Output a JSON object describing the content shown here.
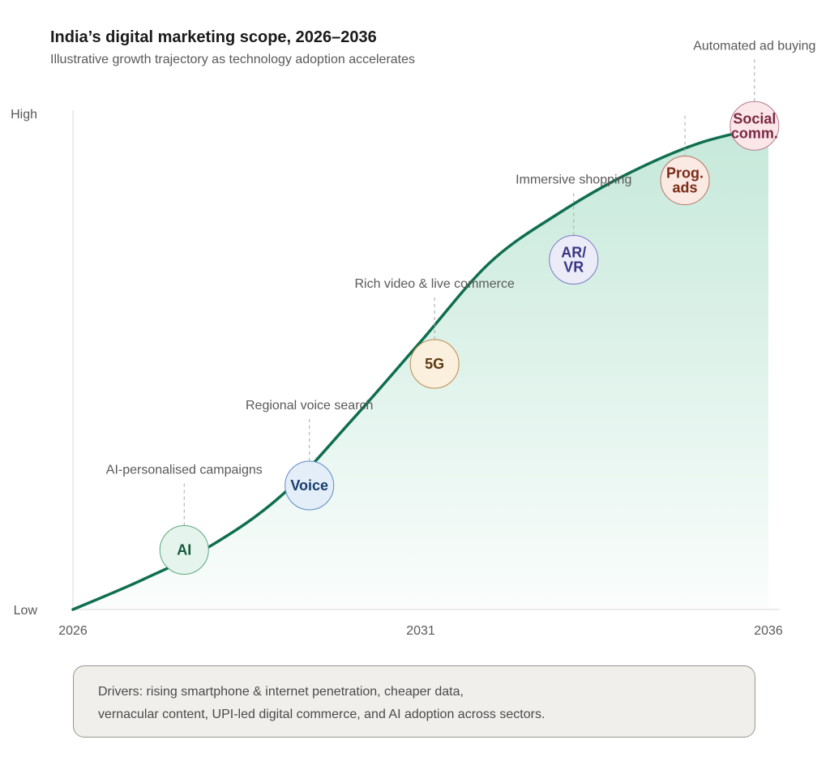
{
  "title": "India’s digital marketing scope, 2026–2036",
  "subtitle": "Illustrative growth trajectory as technology adoption accelerates",
  "chart_data": {
    "type": "area",
    "title": "India’s digital marketing scope, 2026–2036",
    "subtitle": "Illustrative growth trajectory as technology adoption accelerates",
    "xlabel": "",
    "ylabel": "",
    "x_ticks": [
      "2026",
      "2031",
      "2036"
    ],
    "y_ticks": [
      "Low",
      "High"
    ],
    "xlim": [
      2026,
      2036
    ],
    "ylim": [
      0,
      1
    ],
    "grid": false,
    "legend": "none",
    "colors": {
      "line": "#0f6e50",
      "fill": "#9fd9c1",
      "axis": "#d9d9d9"
    },
    "curve": {
      "x": [
        2026.0,
        2027.0,
        2028.0,
        2029.0,
        2030.0,
        2031.0,
        2032.0,
        2033.0,
        2034.0,
        2035.0,
        2036.0
      ],
      "y": [
        0.0,
        0.06,
        0.13,
        0.23,
        0.38,
        0.54,
        0.7,
        0.8,
        0.88,
        0.94,
        0.975
      ]
    },
    "milestones": [
      {
        "label": "AI",
        "annotation": "AI-personalised campaigns",
        "x": 2027.6,
        "y": 0.12,
        "fill": "#e5f4ec",
        "stroke": "#5aa880",
        "text_color": "#145a3a"
      },
      {
        "label": "Voice",
        "annotation": "Regional voice search",
        "x": 2029.4,
        "y": 0.25,
        "fill": "#e4eef9",
        "stroke": "#5c8ac4",
        "text_color": "#1b3f6e"
      },
      {
        "label": "5G",
        "annotation": "Rich video & live commerce",
        "x": 2031.2,
        "y": 0.495,
        "fill": "#fbf0dd",
        "stroke": "#b88d4f",
        "text_color": "#5c3a10"
      },
      {
        "label": "AR/\nVR",
        "annotation": "Immersive shopping",
        "x": 2033.2,
        "y": 0.705,
        "fill": "#ececf9",
        "stroke": "#7a76c4",
        "text_color": "#3a3682"
      },
      {
        "label": "Prog.\nads",
        "annotation": "",
        "x": 2034.8,
        "y": 0.865,
        "fill": "#fbeae4",
        "stroke": "#b87260",
        "text_color": "#7a2c16"
      },
      {
        "label": "Social\ncomm.",
        "annotation": "Automated ad buying",
        "x": 2035.8,
        "y": 0.975,
        "fill": "#fbe6ea",
        "stroke": "#b87a8a",
        "text_color": "#7a2a44"
      }
    ]
  },
  "drivers_text": "Drivers: rising smartphone & internet penetration, cheaper data,\nvernacular content, UPI-led digital commerce, and AI adoption across sectors."
}
